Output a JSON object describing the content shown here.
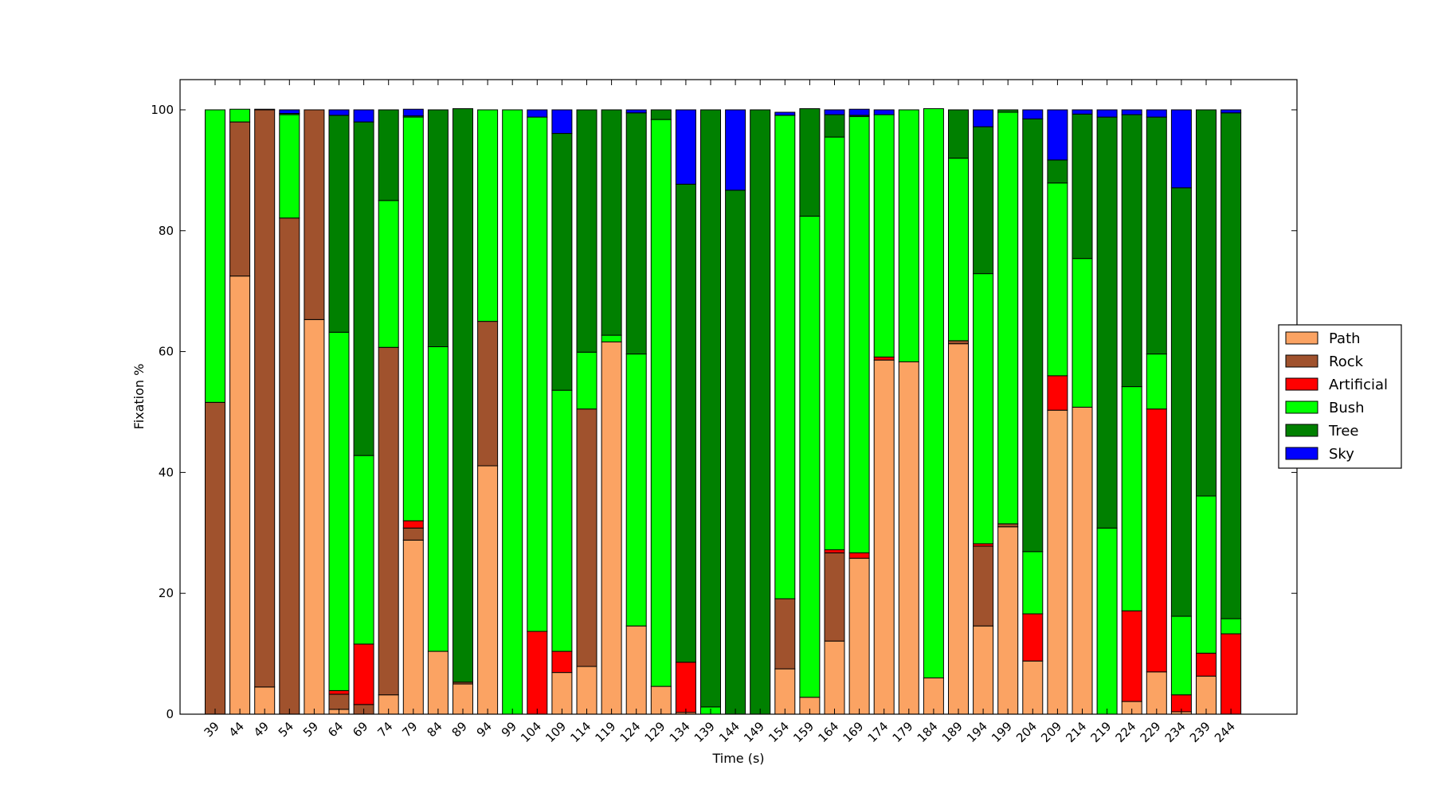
{
  "chart_data": {
    "type": "bar",
    "stacked": true,
    "xlabel": "Time (s)",
    "ylabel": "Fixation %",
    "ylim": [
      0,
      105
    ],
    "yticks": [
      0,
      20,
      40,
      60,
      80,
      100
    ],
    "grid": false,
    "legend_position": "right",
    "categories": [
      "39",
      "44",
      "49",
      "54",
      "59",
      "64",
      "69",
      "74",
      "79",
      "84",
      "89",
      "94",
      "99",
      "104",
      "109",
      "114",
      "119",
      "124",
      "129",
      "134",
      "139",
      "144",
      "149",
      "154",
      "159",
      "164",
      "169",
      "174",
      "179",
      "184",
      "189",
      "194",
      "199",
      "204",
      "209",
      "214",
      "219",
      "224",
      "229",
      "234",
      "239",
      "244"
    ],
    "series": [
      {
        "name": "Path",
        "color": "#fba363",
        "values": [
          0,
          72.5,
          4.5,
          0,
          65.3,
          0.8,
          0,
          3.2,
          28.8,
          10.4,
          5,
          41.1,
          0,
          0,
          6.9,
          7.9,
          61.6,
          14.6,
          4.6,
          0.3,
          0,
          0,
          0,
          7.5,
          2.8,
          12.1,
          25.8,
          58.6,
          58.3,
          6,
          61.3,
          14.6,
          31,
          8.8,
          50.3,
          50.8,
          0,
          2.1,
          7,
          0.4,
          6.3,
          0
        ]
      },
      {
        "name": "Rock",
        "color": "#a0522d",
        "values": [
          51.6,
          25.5,
          95.5,
          82.1,
          34.7,
          2.5,
          1.6,
          57.5,
          2,
          0,
          0.3,
          23.9,
          0,
          0,
          0,
          42.6,
          0,
          0,
          0,
          0,
          0,
          0,
          0,
          11.6,
          0,
          14.6,
          0,
          0,
          0,
          0,
          0.5,
          13.2,
          0.5,
          0,
          0,
          0,
          0,
          0,
          0,
          0,
          0,
          0
        ]
      },
      {
        "name": "Artificial",
        "color": "#ff0000",
        "values": [
          0,
          0,
          0,
          0,
          0,
          0.6,
          10,
          0,
          1.2,
          0,
          0,
          0,
          0,
          13.7,
          3.5,
          0,
          0,
          0,
          0,
          8.3,
          0,
          0,
          0,
          0,
          0,
          0.5,
          0.9,
          0.5,
          0,
          0,
          0,
          0.4,
          0,
          7.8,
          5.7,
          0,
          0,
          15,
          43.5,
          2.8,
          3.8,
          13.3
        ]
      },
      {
        "name": "Bush",
        "color": "#00ff00",
        "values": [
          48.4,
          2.1,
          0,
          17.1,
          0,
          59.3,
          31.2,
          24.3,
          66.8,
          50.4,
          0,
          35,
          100,
          85.1,
          43.2,
          9.4,
          1.1,
          45,
          93.8,
          0,
          1.2,
          0,
          0,
          80,
          79.6,
          68.3,
          72.2,
          40.1,
          41.7,
          94.2,
          30.2,
          44.7,
          68.1,
          10.3,
          31.9,
          24.6,
          30.8,
          37.1,
          9.1,
          13,
          26,
          2.5
        ]
      },
      {
        "name": "Tree",
        "color": "#008000",
        "values": [
          0,
          0,
          0.1,
          0.2,
          0,
          35.9,
          55.2,
          15,
          0.2,
          39.2,
          94.9,
          0,
          0,
          0,
          42.5,
          40.1,
          37.3,
          39.9,
          1.6,
          79.1,
          98.8,
          86.7,
          100,
          0,
          17.8,
          3.7,
          0.2,
          0,
          0,
          0,
          8,
          24.3,
          0.4,
          71.6,
          3.8,
          23.9,
          68,
          45,
          39.2,
          70.9,
          63.9,
          83.7
        ]
      },
      {
        "name": "Sky",
        "color": "#0000ff",
        "values": [
          0,
          0,
          0,
          0.6,
          0,
          0.9,
          2,
          0,
          1.1,
          0,
          0,
          0,
          0,
          1.2,
          3.9,
          0,
          0,
          0.5,
          0,
          12.3,
          0,
          13.3,
          0,
          0.5,
          0,
          0.8,
          1,
          0.8,
          0,
          0,
          0,
          2.8,
          0,
          1.5,
          8.3,
          0.7,
          1.2,
          0.8,
          1.2,
          12.9,
          0,
          0.5
        ]
      }
    ]
  }
}
